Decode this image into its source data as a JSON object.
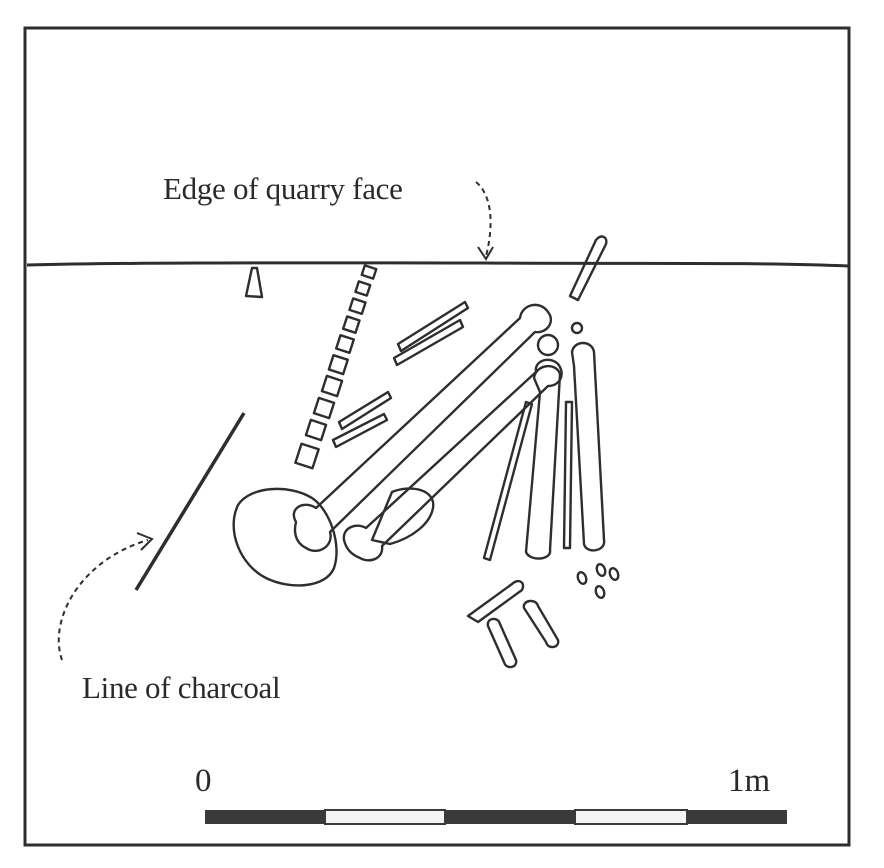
{
  "annotations": {
    "quarry_edge": "Edge of quarry face",
    "charcoal": "Line of charcoal"
  },
  "scale_bar": {
    "start_label": "0",
    "end_label": "1m",
    "length_m": 1,
    "segment_pattern": [
      "dark",
      "light",
      "dark",
      "light",
      "dark"
    ]
  },
  "colors": {
    "ink": "#2e2e2e",
    "paper": "#ffffff",
    "scale_dark": "#3a3a3a",
    "scale_light": "#f4f4f4"
  }
}
